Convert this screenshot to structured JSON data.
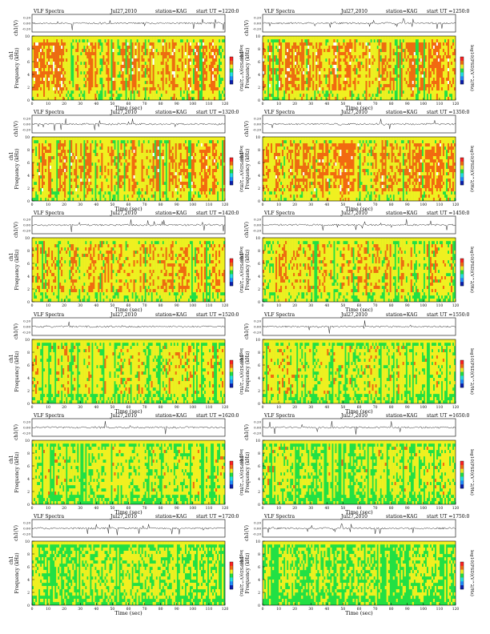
{
  "page": {
    "type": "vlf-spectrogram-sheet"
  },
  "chart_data": {
    "type": "heatmap",
    "header_left": "VLF Spectra",
    "station_label": "station=KAG",
    "start_prefix": "start UT =",
    "trace_ylabel": "ch1(V)",
    "trace_ticks": [
      "0.20",
      "0.00",
      "-0.20"
    ],
    "spec_ylabel": "Frequency (kHz)",
    "spec_ylabel_prefix": "ch1",
    "yticks": [
      "10",
      "8",
      "6",
      "4",
      "2",
      "0"
    ],
    "xlabel": "Time (sec)",
    "xticks": [
      "0",
      "10",
      "20",
      "30",
      "40",
      "50",
      "60",
      "70",
      "80",
      "90",
      "100",
      "110",
      "120"
    ],
    "xlim": [
      0,
      120
    ],
    "ylim": [
      0,
      10
    ],
    "colorbar_label": "log10(PSD)(V^2/Hz)",
    "colormap": [
      "#0a1fb0",
      "#1e8cff",
      "#22e0e6",
      "#22e044",
      "#f0f020",
      "#f26a10",
      "#ff2222"
    ],
    "panels": [
      {
        "date": "Jul27,2010",
        "start": "1220:0",
        "activity": 0.88
      },
      {
        "date": "Jul27,2010",
        "start": "1250:0",
        "activity": 0.88
      },
      {
        "date": "Jul27,2010",
        "start": "1320:0",
        "activity": 0.85
      },
      {
        "date": "Jul27,2010",
        "start": "1350:0",
        "activity": 0.85
      },
      {
        "date": "Jul27,2010",
        "start": "1420:0",
        "activity": 0.75
      },
      {
        "date": "Jul27,2010",
        "start": "1450:0",
        "activity": 0.72
      },
      {
        "date": "Jul27,2010",
        "start": "1520:0",
        "activity": 0.66
      },
      {
        "date": "Jul27,2010",
        "start": "1550:0",
        "activity": 0.6
      },
      {
        "date": "Jul27,2010",
        "start": "1620:0",
        "activity": 0.56
      },
      {
        "date": "Jul27,2010",
        "start": "1650:0",
        "activity": 0.55
      },
      {
        "date": "Jul27,2010",
        "start": "1720:0",
        "activity": 0.48
      },
      {
        "date": "Jul27,2010",
        "start": "1750:0",
        "activity": 0.46
      }
    ]
  }
}
